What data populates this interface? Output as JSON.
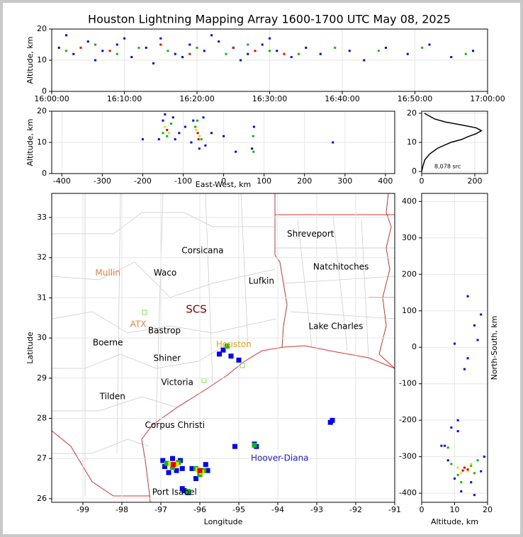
{
  "chart_data": [
    {
      "type": "scatter",
      "title": "Houston Lightning Mapping Array 1600-1700 UTC May 08, 2025",
      "ylabel": "Altitude, km",
      "xlim": [
        0,
        60
      ],
      "xticks": [
        {
          "value": 0,
          "label": "16:00:00"
        },
        {
          "value": 10,
          "label": "16:10:00"
        },
        {
          "value": 20,
          "label": "16:20:00"
        },
        {
          "value": 30,
          "label": "16:30:00"
        },
        {
          "value": 40,
          "label": "16:40:00"
        },
        {
          "value": 50,
          "label": "16:50:00"
        },
        {
          "value": 60,
          "label": "17:00:00"
        }
      ],
      "ylim": [
        0,
        20
      ],
      "yticks": [
        0,
        10,
        20
      ],
      "series": [
        {
          "color": "#0000ff",
          "x": [
            1,
            3,
            5,
            7,
            9,
            11,
            13,
            15,
            17,
            19,
            21,
            23,
            25,
            27,
            29,
            31,
            33,
            35,
            37,
            41,
            43,
            46,
            49,
            52,
            55,
            58,
            2,
            6,
            10,
            14,
            18,
            22,
            26,
            30
          ],
          "values": [
            14,
            12,
            16,
            13,
            15,
            11,
            14,
            17,
            12,
            15,
            13,
            16,
            14,
            12,
            15,
            13,
            11,
            14,
            12,
            13,
            10,
            14,
            12,
            15,
            11,
            13,
            18,
            10,
            17,
            9,
            11,
            18,
            10,
            17
          ]
        },
        {
          "color": "#00c000",
          "x": [
            2,
            6,
            9,
            12,
            16,
            20,
            24,
            27,
            30,
            34,
            39,
            45,
            51,
            57
          ],
          "values": [
            13,
            15,
            12,
            14,
            13,
            14,
            12,
            15,
            13,
            12,
            14,
            13,
            14,
            12
          ]
        },
        {
          "color": "#ff0000",
          "x": [
            4,
            8,
            15,
            19,
            25,
            28,
            32
          ],
          "values": [
            14,
            13,
            15,
            12,
            14,
            13,
            12
          ]
        }
      ]
    },
    {
      "type": "scatter",
      "xlabel": "East-West, km",
      "ylabel": "Altitude, km",
      "xlim": [
        -425,
        423
      ],
      "xticks": [
        -400,
        -300,
        -200,
        -100,
        0,
        100,
        200,
        300,
        400
      ],
      "ylim": [
        0,
        20
      ],
      "yticks": [
        0,
        10,
        20
      ],
      "series": [
        {
          "color": "#0000ff",
          "x": [
            -160,
            -150,
            -125,
            -120,
            -145,
            -80,
            -50,
            -45,
            -75,
            -60,
            -200,
            -30,
            0,
            30,
            70,
            75,
            270,
            -110,
            -95
          ],
          "values": [
            11,
            17,
            18,
            11,
            19,
            10,
            18,
            9,
            17,
            8,
            11,
            13,
            12,
            7,
            8,
            15,
            10,
            13,
            15
          ]
        },
        {
          "color": "#00c000",
          "x": [
            -150,
            -130,
            -140,
            -70,
            -55,
            -65,
            73,
            74
          ],
          "values": [
            13,
            16,
            12,
            15,
            11,
            17,
            12,
            7
          ]
        },
        {
          "color": "#ffd700",
          "x": [
            -145,
            -135,
            -68,
            -60
          ],
          "values": [
            15,
            13,
            14,
            12
          ]
        },
        {
          "color": "#e00000",
          "x": [
            -140,
            -64,
            -62
          ],
          "values": [
            14,
            13,
            11
          ]
        }
      ]
    },
    {
      "type": "line",
      "annotation": "8,078 src",
      "xlim": [
        0,
        248
      ],
      "xticks": [
        0,
        200
      ],
      "ylim": [
        -0.7,
        20.7
      ],
      "yticks": [
        0,
        10,
        20
      ],
      "series": [
        {
          "color": "#000000",
          "x": [
            0,
            5,
            12,
            30,
            60,
            110,
            150,
            175,
            205,
            225,
            205,
            150,
            90,
            50,
            30,
            10
          ],
          "values": [
            0,
            2,
            4,
            6,
            8,
            10,
            11,
            12,
            13,
            14,
            15,
            16,
            17,
            18,
            19,
            20
          ]
        }
      ]
    },
    {
      "type": "map",
      "xlabel": "Longitude",
      "ylabel": "Latitude",
      "xlim": [
        -99.8,
        -91
      ],
      "xticks": [
        -99,
        -98,
        -97,
        -96,
        -95,
        -94,
        -93,
        -92,
        -91
      ],
      "ylim": [
        25.91,
        33.6
      ],
      "yticks": [
        26,
        27,
        28,
        29,
        30,
        31,
        32,
        33
      ],
      "places": [
        {
          "name": "Shreveport",
          "lon": -93.16,
          "lat": 32.59,
          "color": "#000000"
        },
        {
          "name": "Corsicana",
          "lon": -95.93,
          "lat": 32.17,
          "color": "#000000"
        },
        {
          "name": "Natchitoches",
          "lon": -92.38,
          "lat": 31.77,
          "color": "#000000"
        },
        {
          "name": "Mullin",
          "lon": -98.36,
          "lat": 31.62,
          "color": "#f08040"
        },
        {
          "name": "Waco",
          "lon": -96.89,
          "lat": 31.62,
          "color": "#000000"
        },
        {
          "name": "Lufkin",
          "lon": -94.42,
          "lat": 31.41,
          "color": "#000000"
        },
        {
          "name": "SCS",
          "lon": -96.09,
          "lat": 30.71,
          "color": "#800000"
        },
        {
          "name": "ATX",
          "lon": -97.58,
          "lat": 30.34,
          "color": "#f08040"
        },
        {
          "name": "Bastrop",
          "lon": -96.91,
          "lat": 30.18,
          "color": "#000000"
        },
        {
          "name": "Lake Charles",
          "lon": -92.51,
          "lat": 30.28,
          "color": "#000000"
        },
        {
          "name": "Boerne",
          "lon": -98.36,
          "lat": 29.88,
          "color": "#000000"
        },
        {
          "name": "Houston",
          "lon": -95.13,
          "lat": 29.83,
          "color": "#f0a020"
        },
        {
          "name": "Shiner",
          "lon": -96.84,
          "lat": 29.49,
          "color": "#000000"
        },
        {
          "name": "Victoria",
          "lon": -96.58,
          "lat": 28.89,
          "color": "#000000"
        },
        {
          "name": "Tilden",
          "lon": -98.24,
          "lat": 28.54,
          "color": "#000000"
        },
        {
          "name": "Corpus Christi",
          "lon": -96.64,
          "lat": 27.82,
          "color": "#000000"
        },
        {
          "name": "Hoover-Diana",
          "lon": -93.95,
          "lat": 27.0,
          "color": "#2020e0"
        },
        {
          "name": "Port Isabel",
          "lon": -96.65,
          "lat": 26.16,
          "color": "#000000"
        }
      ],
      "series": [
        {
          "color": "#0000ff",
          "x": [
            -96.9,
            -96.5,
            -96.95,
            -96.45,
            -96.7,
            -96.2,
            -95.8,
            -96.1,
            -95.85,
            -96.4,
            -96.3,
            -96.45,
            -95.1,
            -94.6,
            -94.55,
            -92.6,
            -92.65,
            -95.4,
            -95.2,
            -95.5,
            -95.0,
            -96.6,
            -96.8
          ],
          "values": [
            26.8,
            26.95,
            26.95,
            26.75,
            27.0,
            26.75,
            26.7,
            26.5,
            26.85,
            26.2,
            26.15,
            26.25,
            27.3,
            27.36,
            27.3,
            27.95,
            27.9,
            29.7,
            29.55,
            29.6,
            29.45,
            26.7,
            26.65
          ]
        },
        {
          "color": "#00c000",
          "x": [
            -96.85,
            -96.55,
            -96.7,
            -96.1,
            -95.9,
            -96.0,
            -94.6,
            -95.3,
            -96.3
          ],
          "values": [
            26.88,
            26.9,
            26.78,
            26.75,
            26.7,
            26.6,
            27.33,
            29.8,
            26.18
          ]
        },
        {
          "color": "#ffd700",
          "x": [
            -96.75,
            -96.6,
            -96.05,
            -95.95
          ],
          "values": [
            26.86,
            26.85,
            26.72,
            26.66
          ]
        },
        {
          "color": "#e00000",
          "x": [
            -96.68,
            -96.0
          ],
          "values": [
            26.85,
            26.7
          ]
        }
      ]
    },
    {
      "type": "scatter",
      "xlabel": "Altitude, km",
      "ylabel": "North-South, km",
      "xlim": [
        0,
        20
      ],
      "xticks": [
        0,
        10,
        20
      ],
      "ylim": [
        -425,
        422
      ],
      "yticks": [
        -400,
        -300,
        -200,
        -100,
        0,
        100,
        200,
        300,
        400
      ],
      "series": [
        {
          "color": "#0000ff",
          "x": [
            8,
            10,
            15,
            18,
            12,
            9,
            11,
            16,
            19,
            7,
            14,
            17,
            13,
            10,
            16,
            18,
            6,
            14,
            11
          ],
          "values": [
            -310,
            -360,
            -370,
            -340,
            -395,
            -220,
            -200,
            -405,
            -300,
            -270,
            -30,
            20,
            -60,
            10,
            60,
            90,
            -270,
            140,
            -230
          ]
        },
        {
          "color": "#00c000",
          "x": [
            9,
            11,
            16,
            17,
            12,
            8,
            15
          ],
          "values": [
            -320,
            -350,
            -345,
            -310,
            -370,
            -275,
            -325
          ]
        },
        {
          "color": "#ffd700",
          "x": [
            11,
            14,
            15,
            12
          ],
          "values": [
            -330,
            -340,
            -320,
            -345
          ]
        },
        {
          "color": "#e00000",
          "x": [
            13,
            14,
            12.5
          ],
          "values": [
            -330,
            -335,
            -338
          ]
        }
      ]
    }
  ]
}
